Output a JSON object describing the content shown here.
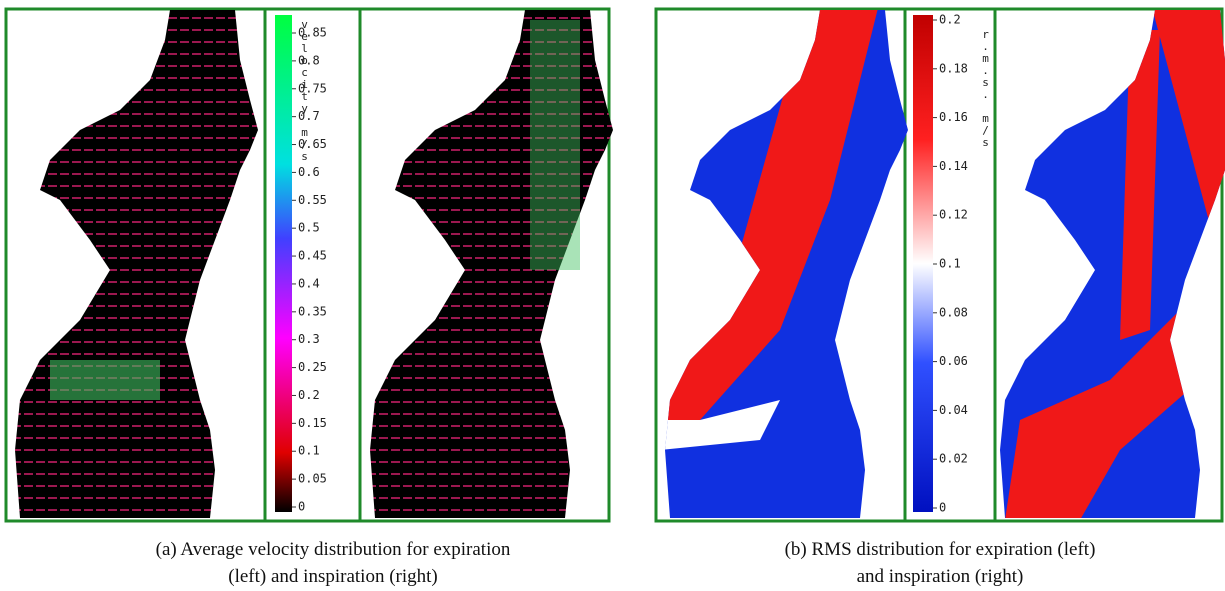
{
  "panel_a": {
    "colorbar_label": "velocity m/s",
    "ticks": [
      0.85,
      0.8,
      0.75,
      0.7,
      0.65,
      0.6,
      0.55,
      0.5,
      0.45,
      0.4,
      0.35,
      0.3,
      0.25,
      0.2,
      0.15,
      0.1,
      0.05,
      0
    ],
    "caption": [
      "(a) Average velocity distribution for expiration",
      "(left) and inspiration (right)"
    ]
  },
  "panel_b": {
    "colorbar_label": "r.m.s. m/s",
    "ticks": [
      0.2,
      0.18,
      0.16,
      0.14,
      0.12,
      0.1,
      0.08,
      0.06,
      0.04,
      0.02,
      0
    ],
    "caption": [
      "(b) RMS distribution for expiration (left)",
      "and inspiration (right)"
    ]
  }
}
